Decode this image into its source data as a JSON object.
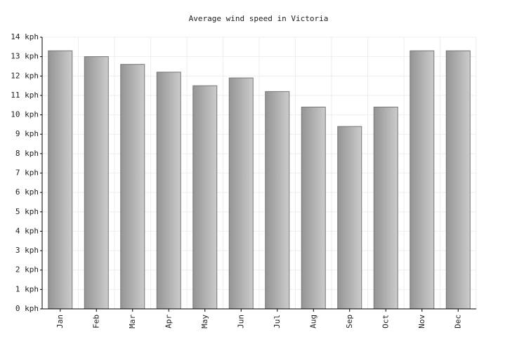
{
  "chart_data": {
    "type": "bar",
    "title": "Average wind speed in Victoria",
    "categories": [
      "Jan",
      "Feb",
      "Mar",
      "Apr",
      "May",
      "Jun",
      "Jul",
      "Aug",
      "Sep",
      "Oct",
      "Nov",
      "Dec"
    ],
    "values": [
      13.3,
      13.0,
      12.6,
      12.2,
      11.5,
      11.9,
      11.2,
      10.4,
      9.4,
      10.4,
      13.3,
      13.3
    ],
    "ylim": [
      0,
      14
    ],
    "yticks": [
      {
        "value": 0,
        "label": "0 kph"
      },
      {
        "value": 1,
        "label": "1 kph"
      },
      {
        "value": 2,
        "label": "2 kph"
      },
      {
        "value": 3,
        "label": "3 kph"
      },
      {
        "value": 4,
        "label": "4 kph"
      },
      {
        "value": 5,
        "label": "5 kph"
      },
      {
        "value": 6,
        "label": "6 kph"
      },
      {
        "value": 7,
        "label": "7 kph"
      },
      {
        "value": 8,
        "label": "8 kph"
      },
      {
        "value": 9,
        "label": "9 kph"
      },
      {
        "value": 10,
        "label": "10 kph"
      },
      {
        "value": 11,
        "label": "11 kph"
      },
      {
        "value": 12,
        "label": "12 kph"
      },
      {
        "value": 13,
        "label": "13 kph"
      },
      {
        "value": 14,
        "label": "14 kph"
      }
    ],
    "grid": true
  }
}
